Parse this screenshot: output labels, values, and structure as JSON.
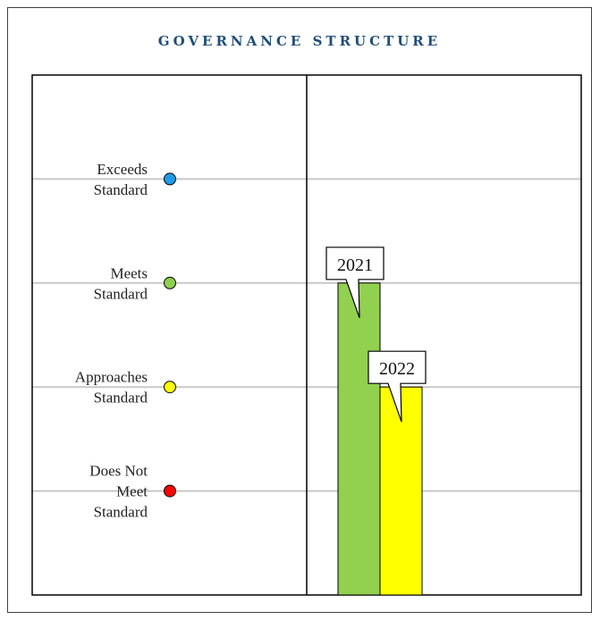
{
  "chart_data": {
    "type": "bar",
    "title": "GOVERNANCE STRUCTURE",
    "levels": [
      {
        "lines": [
          "Exceeds",
          "Standard"
        ],
        "color": "#1e9be6",
        "value": 4
      },
      {
        "lines": [
          "Meets",
          "Standard"
        ],
        "color": "#8ccf4d",
        "value": 3
      },
      {
        "lines": [
          "Approaches",
          "Standard"
        ],
        "color": "#ffff00",
        "value": 2
      },
      {
        "lines": [
          "Does Not",
          "Meet",
          "Standard"
        ],
        "color": "#ff0000",
        "value": 1
      }
    ],
    "ylim": [
      0,
      5
    ],
    "series": [
      {
        "name": "2021",
        "value": 3,
        "color": "#92d050"
      },
      {
        "name": "2022",
        "value": 2,
        "color": "#ffff00"
      }
    ],
    "grid": true
  }
}
